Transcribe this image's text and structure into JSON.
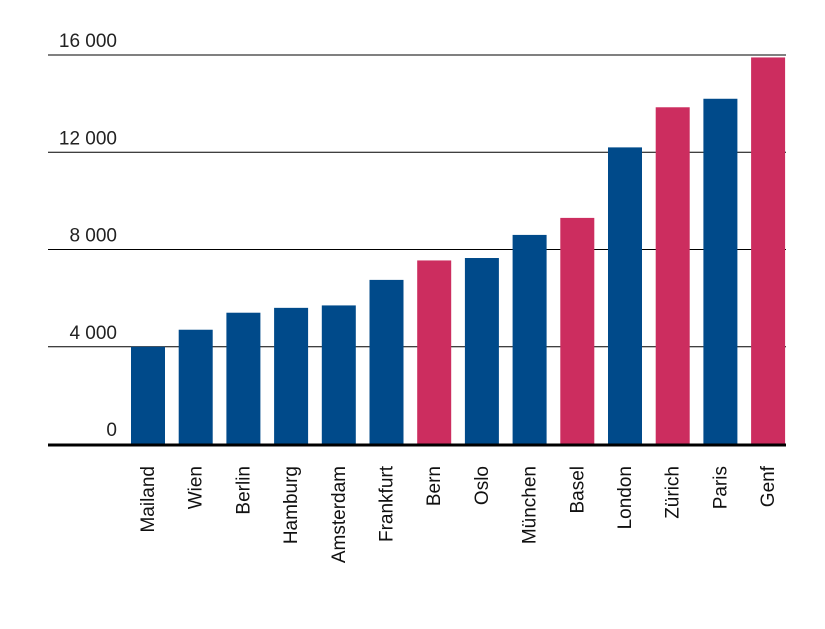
{
  "chart_data": {
    "type": "bar",
    "title": "",
    "xlabel": "",
    "ylabel": "",
    "ylim": [
      0,
      16000
    ],
    "yticks": [
      0,
      4000,
      8000,
      12000,
      16000
    ],
    "ytick_labels": [
      "0",
      "4 000",
      "8 000",
      "12 000",
      "16 000"
    ],
    "grid": true,
    "categories": [
      "Mailand",
      "Wien",
      "Berlin",
      "Hamburg",
      "Amsterdam",
      "Frankfurt",
      "Bern",
      "Oslo",
      "München",
      "Basel",
      "London",
      "Zürich",
      "Paris",
      "Genf"
    ],
    "values": [
      4000,
      4700,
      5400,
      5600,
      5700,
      6750,
      7550,
      7650,
      8600,
      9300,
      12200,
      13850,
      14200,
      15900
    ],
    "highlight": [
      false,
      false,
      false,
      false,
      false,
      false,
      true,
      false,
      false,
      true,
      false,
      true,
      false,
      true
    ],
    "colors": {
      "default": "#004a8a",
      "highlight": "#cc2d5f"
    }
  }
}
